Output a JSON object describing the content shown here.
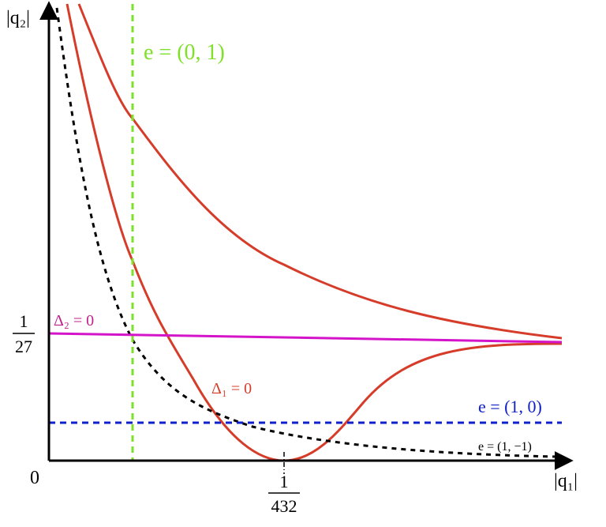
{
  "axes": {
    "x_label": "|q₁|",
    "y_label": "|q₂|",
    "origin": "0"
  },
  "y_tick": {
    "numerator": "1",
    "denominator": "27"
  },
  "x_tick": {
    "numerator": "1",
    "denominator": "432"
  },
  "curves": [
    {
      "label": "e = (0, 1)"
    },
    {
      "label": "Δ₂ = 0"
    },
    {
      "label": "Δ₁ = 0"
    },
    {
      "label": "e = (1, 0)"
    },
    {
      "label": "e = (1, −1)"
    }
  ]
}
